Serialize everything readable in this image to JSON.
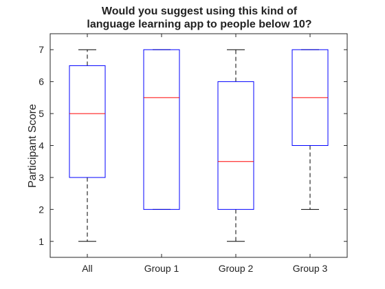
{
  "chart_data": {
    "type": "box",
    "title_lines": [
      "Would you suggest using this kind of",
      "language learning app to people below 10?"
    ],
    "xlabel": "",
    "ylabel": "Participant Score",
    "ylim": [
      0.5,
      7.5
    ],
    "yticks": [
      1,
      2,
      3,
      4,
      5,
      6,
      7
    ],
    "categories": [
      "All",
      "Group 1",
      "Group 2",
      "Group 3"
    ],
    "boxes": [
      {
        "category": "All",
        "whisker_low": 1,
        "q1": 3,
        "median": 5,
        "q3": 6.5,
        "whisker_high": 7
      },
      {
        "category": "Group 1",
        "whisker_low": 2,
        "q1": 2,
        "median": 5.5,
        "q3": 7,
        "whisker_high": 7
      },
      {
        "category": "Group 2",
        "whisker_low": 1,
        "q1": 2,
        "median": 3.5,
        "q3": 6,
        "whisker_high": 7
      },
      {
        "category": "Group 3",
        "whisker_low": 2,
        "q1": 4,
        "median": 5.5,
        "q3": 7,
        "whisker_high": 7
      }
    ],
    "colors": {
      "box": "#0000ff",
      "median": "#ff0000",
      "whisker": "#000000",
      "axis": "#262626"
    }
  }
}
